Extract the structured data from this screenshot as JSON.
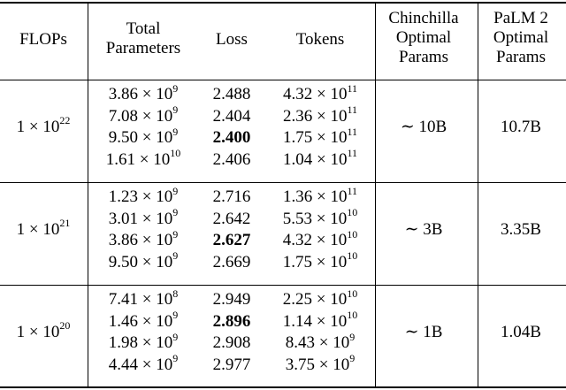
{
  "headers": {
    "flops": "FLOPs",
    "total_params": [
      "Total",
      "Parameters"
    ],
    "loss": "Loss",
    "tokens": "Tokens",
    "chinchilla": [
      "Chinchilla",
      "Optimal",
      "Params"
    ],
    "palm2": [
      "PaLM 2",
      "Optimal",
      "Params"
    ]
  },
  "groups": [
    {
      "flops": {
        "mantissa": "1 × 10",
        "exp": "22"
      },
      "chinchilla": "∼ 10B",
      "palm2": "10.7B",
      "rows": [
        {
          "params": {
            "m": "3.86 × 10",
            "e": "9"
          },
          "loss": "2.488",
          "bold": false,
          "tokens": {
            "m": "4.32 × 10",
            "e": "11"
          }
        },
        {
          "params": {
            "m": "7.08 × 10",
            "e": "9"
          },
          "loss": "2.404",
          "bold": false,
          "tokens": {
            "m": "2.36 × 10",
            "e": "11"
          }
        },
        {
          "params": {
            "m": "9.50 × 10",
            "e": "9"
          },
          "loss": "2.400",
          "bold": true,
          "tokens": {
            "m": "1.75 × 10",
            "e": "11"
          }
        },
        {
          "params": {
            "m": "1.61 × 10",
            "e": "10"
          },
          "loss": "2.406",
          "bold": false,
          "tokens": {
            "m": "1.04 × 10",
            "e": "11"
          }
        }
      ]
    },
    {
      "flops": {
        "mantissa": "1 × 10",
        "exp": "21"
      },
      "chinchilla": "∼ 3B",
      "palm2": "3.35B",
      "rows": [
        {
          "params": {
            "m": "1.23 × 10",
            "e": "9"
          },
          "loss": "2.716",
          "bold": false,
          "tokens": {
            "m": "1.36 × 10",
            "e": "11"
          }
        },
        {
          "params": {
            "m": "3.01 × 10",
            "e": "9"
          },
          "loss": "2.642",
          "bold": false,
          "tokens": {
            "m": "5.53 × 10",
            "e": "10"
          }
        },
        {
          "params": {
            "m": "3.86 × 10",
            "e": "9"
          },
          "loss": "2.627",
          "bold": true,
          "tokens": {
            "m": "4.32 × 10",
            "e": "10"
          }
        },
        {
          "params": {
            "m": "9.50 × 10",
            "e": "9"
          },
          "loss": "2.669",
          "bold": false,
          "tokens": {
            "m": "1.75 × 10",
            "e": "10"
          }
        }
      ]
    },
    {
      "flops": {
        "mantissa": "1 × 10",
        "exp": "20"
      },
      "chinchilla": "∼ 1B",
      "palm2": "1.04B",
      "rows": [
        {
          "params": {
            "m": "7.41 × 10",
            "e": "8"
          },
          "loss": "2.949",
          "bold": false,
          "tokens": {
            "m": "2.25 × 10",
            "e": "10"
          }
        },
        {
          "params": {
            "m": "1.46 × 10",
            "e": "9"
          },
          "loss": "2.896",
          "bold": true,
          "tokens": {
            "m": "1.14 × 10",
            "e": "10"
          }
        },
        {
          "params": {
            "m": "1.98 × 10",
            "e": "9"
          },
          "loss": "2.908",
          "bold": false,
          "tokens": {
            "m": "8.43 × 10",
            "e": "9"
          }
        },
        {
          "params": {
            "m": "4.44 × 10",
            "e": "9"
          },
          "loss": "2.977",
          "bold": false,
          "tokens": {
            "m": "3.75 × 10",
            "e": "9"
          }
        }
      ]
    }
  ]
}
